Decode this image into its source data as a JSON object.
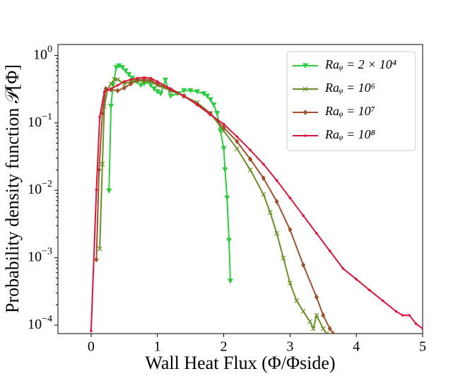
{
  "chart_data": {
    "type": "line",
    "x_label": "Wall Heat Flux (Φ/Φside)",
    "y_label": "Probability density function 𝒫[Φ]",
    "log_y": true,
    "legend": "upper right",
    "xlim": [
      -0.5,
      5
    ],
    "xticks": [
      0,
      1,
      2,
      3,
      4,
      5
    ],
    "ylim": [
      7.5e-05,
      1.45
    ],
    "yticks": [
      {
        "value": 0.0001,
        "label": "10^-4"
      },
      {
        "value": 0.001,
        "label": "10^-3"
      },
      {
        "value": 0.01,
        "label": "10^-2"
      },
      {
        "value": 0.1,
        "label": "10^-1"
      },
      {
        "value": 1,
        "label": "10^0"
      }
    ],
    "series": [
      {
        "name": "Raᵩ = 2 × 10⁴",
        "color": "#2ecc40",
        "marker": "triangle-down",
        "x": [
          0.27,
          0.3,
          0.33,
          0.38,
          0.42,
          0.47,
          0.52,
          0.57,
          0.62,
          0.68,
          0.75,
          0.8,
          0.85,
          0.9,
          0.95,
          1.0,
          1.05,
          1.12,
          1.2,
          1.3,
          1.4,
          1.5,
          1.6,
          1.7,
          1.75,
          1.8,
          1.85,
          1.9,
          1.95,
          2.0,
          2.02,
          2.05,
          2.08,
          2.1
        ],
        "values": [
          0.0098,
          0.176,
          0.36,
          0.66,
          0.7,
          0.66,
          0.59,
          0.52,
          0.46,
          0.41,
          0.36,
          0.38,
          0.41,
          0.36,
          0.32,
          0.29,
          0.27,
          0.43,
          0.25,
          0.27,
          0.3,
          0.3,
          0.29,
          0.27,
          0.25,
          0.22,
          0.185,
          0.138,
          0.076,
          0.0415,
          0.0201,
          0.0077,
          0.0018,
          0.00045
        ]
      },
      {
        "name": "Raᵩ = 10⁶",
        "color": "#6b8e23",
        "marker": "x",
        "x": [
          0.13,
          0.17,
          0.2,
          0.25,
          0.3,
          0.35,
          0.4,
          0.5,
          0.6,
          0.7,
          0.8,
          0.9,
          1.0,
          1.2,
          1.4,
          1.6,
          1.8,
          2.0,
          2.2,
          2.4,
          2.6,
          2.7,
          2.8,
          2.9,
          3.0,
          3.1,
          3.2,
          3.3,
          3.35,
          3.4,
          3.5,
          3.55
        ],
        "values": [
          0.00135,
          0.0244,
          0.176,
          0.32,
          0.38,
          0.44,
          0.44,
          0.38,
          0.41,
          0.43,
          0.41,
          0.41,
          0.36,
          0.3,
          0.25,
          0.2,
          0.138,
          0.076,
          0.0415,
          0.0201,
          0.0087,
          0.0047,
          0.0023,
          0.00099,
          0.00042,
          0.00023,
          0.00016,
          0.000113,
          8.9e-05,
          0.00014,
          8.9e-05,
          7.5e-05
        ]
      },
      {
        "name": "Raᵩ = 10⁷",
        "color": "#a0522d",
        "marker": "diamond",
        "x": [
          0.08,
          0.12,
          0.17,
          0.22,
          0.3,
          0.4,
          0.5,
          0.6,
          0.7,
          0.8,
          0.9,
          1.0,
          1.2,
          1.4,
          1.6,
          1.8,
          2.0,
          2.2,
          2.4,
          2.6,
          2.8,
          3.0,
          3.2,
          3.4,
          3.5,
          3.6,
          3.65
        ],
        "values": [
          0.00094,
          0.0201,
          0.138,
          0.32,
          0.31,
          0.3,
          0.33,
          0.38,
          0.43,
          0.44,
          0.43,
          0.38,
          0.31,
          0.25,
          0.19,
          0.138,
          0.085,
          0.053,
          0.0289,
          0.0151,
          0.0068,
          0.0026,
          0.00078,
          0.00026,
          0.00014,
          8.9e-05,
          7.5e-05
        ]
      },
      {
        "name": "Raᵩ = 10⁸",
        "color": "#dc143c",
        "marker": "dot",
        "x": [
          0.0,
          0.08,
          0.13,
          0.2,
          0.3,
          0.4,
          0.5,
          0.6,
          0.7,
          0.8,
          0.9,
          1.0,
          1.2,
          1.4,
          1.6,
          1.8,
          2.0,
          2.2,
          2.4,
          2.6,
          2.8,
          3.0,
          3.2,
          3.4,
          3.6,
          3.8,
          4.0,
          4.2,
          4.4,
          4.6,
          4.7,
          4.8,
          4.9,
          5.0
        ],
        "values": [
          8.2e-05,
          0.0102,
          0.123,
          0.29,
          0.32,
          0.36,
          0.41,
          0.44,
          0.46,
          0.47,
          0.46,
          0.41,
          0.32,
          0.25,
          0.185,
          0.132,
          0.096,
          0.0625,
          0.0395,
          0.0244,
          0.014,
          0.0077,
          0.0042,
          0.0023,
          0.00126,
          0.00069,
          0.00048,
          0.00033,
          0.00023,
          0.00016,
          0.00014,
          0.00014,
          0.000105,
          8.9e-05
        ]
      }
    ]
  }
}
